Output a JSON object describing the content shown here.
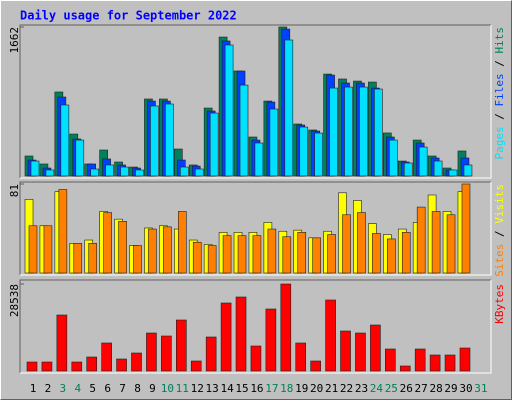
{
  "chart_data": {
    "type": "bar",
    "title": "Daily usage for September 2022",
    "categories": [
      "1",
      "2",
      "3",
      "4",
      "5",
      "6",
      "7",
      "8",
      "9",
      "10",
      "11",
      "12",
      "13",
      "14",
      "15",
      "16",
      "17",
      "18",
      "19",
      "20",
      "21",
      "22",
      "23",
      "24",
      "25",
      "26",
      "27",
      "28",
      "29",
      "30",
      "31"
    ],
    "category_colors": [
      "#000000",
      "#000000",
      "#00805c",
      "#00805c",
      "#000000",
      "#000000",
      "#000000",
      "#000000",
      "#000000",
      "#00805c",
      "#00805c",
      "#000000",
      "#000000",
      "#000000",
      "#000000",
      "#000000",
      "#00805c",
      "#00805c",
      "#000000",
      "#000000",
      "#000000",
      "#000000",
      "#000000",
      "#00805c",
      "#00805c",
      "#000000",
      "#000000",
      "#000000",
      "#000000",
      "#000000",
      "#00805c"
    ],
    "legend_separator": " / ",
    "panels": [
      {
        "ylim": [
          0,
          1662
        ],
        "yticks": [
          1662
        ],
        "series": [
          {
            "name": "Hits",
            "color": "#00805c",
            "values": [
              223,
              134,
              937,
              468,
              134,
              290,
              156,
              100,
              859,
              859,
              301,
              123,
              758,
              1550,
              1171,
              435,
              836,
              1662,
              580,
              513,
              1137,
              1082,
              1059,
              1048,
              480,
              167,
              401,
              223,
              89,
              279,
              null
            ]
          },
          {
            "name": "Files",
            "color": "#0040ff",
            "values": [
              178,
              89,
              881,
              413,
              134,
              190,
              123,
              89,
              836,
              836,
              178,
              111,
              725,
              1506,
              1171,
              401,
              825,
              1639,
              569,
              502,
              1126,
              1037,
              1037,
              981,
              435,
              156,
              368,
              201,
              67,
              201,
              null
            ]
          },
          {
            "name": "Pages",
            "color": "#00e0ff",
            "values": [
              167,
              67,
              792,
              401,
              78,
              123,
              100,
              67,
              781,
              803,
              100,
              78,
              702,
              1461,
              1014,
              368,
              747,
              1517,
              546,
              479,
              981,
              992,
              992,
              970,
              401,
              145,
              323,
              167,
              67,
              123,
              null
            ]
          }
        ]
      },
      {
        "ylim": [
          0,
          81
        ],
        "yticks": [
          81
        ],
        "series": [
          {
            "name": "Visits",
            "color": "#ffff00",
            "values": [
              67,
              43,
              74,
              27,
              30,
              56,
              49,
              25,
              41,
              43,
              40,
              30,
              26,
              37,
              37,
              37,
              46,
              38,
              39,
              32,
              38,
              73,
              66,
              45,
              35,
              40,
              46,
              71,
              56,
              74,
              null
            ]
          },
          {
            "name": "Sites",
            "color": "#ff8000",
            "values": [
              43,
              43,
              76,
              27,
              27,
              55,
              47,
              25,
              40,
              42,
              56,
              28,
              25,
              34,
              34,
              34,
              40,
              33,
              37,
              32,
              35,
              53,
              55,
              36,
              31,
              37,
              60,
              56,
              53,
              81,
              null
            ]
          }
        ]
      },
      {
        "ylim": [
          0,
          28538
        ],
        "yticks": [
          28538
        ],
        "series": [
          {
            "name": "KBytes",
            "color": "#ff0000",
            "values": [
              2952,
              2952,
              18368,
              2952,
              4592,
              9184,
              3936,
              5904,
              12464,
              11480,
              16728,
              3280,
              11152,
              22304,
              24272,
              8200,
              20336,
              28538,
              9184,
              3280,
              23288,
              13120,
              12464,
              15088,
              7216,
              1640,
              7216,
              5248,
              5248,
              7544,
              null
            ]
          }
        ]
      }
    ]
  }
}
